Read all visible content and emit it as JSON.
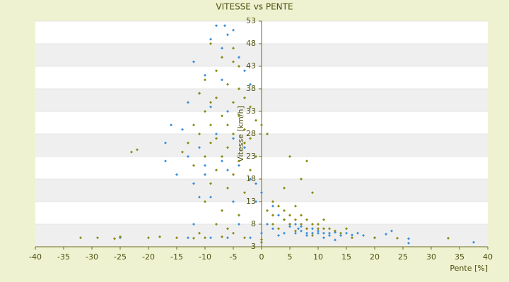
{
  "chart_data": {
    "type": "scatter",
    "title": "VITESSE vs PENTE",
    "x_label": "Pente [%]",
    "y_label": "Vitesse [km/h]",
    "xlim": [
      -40,
      40
    ],
    "xticks": [
      -40,
      -35,
      -30,
      -25,
      -20,
      -15,
      -10,
      -5,
      0,
      5,
      10,
      15,
      20,
      25,
      30,
      35,
      40
    ],
    "ylim": [
      3,
      53
    ],
    "yticks": [
      3,
      8,
      13,
      18,
      23,
      28,
      33,
      38,
      43,
      48,
      53
    ],
    "grid": true,
    "series": [
      {
        "color": "#3a8fd8",
        "x": [
          -8,
          -6.5,
          -5,
          -6,
          -9,
          -7,
          -12,
          -4,
          -3,
          -10,
          -7,
          -2,
          -11,
          -13,
          -9,
          -6,
          -16,
          -14,
          -8,
          -5,
          -17,
          -11,
          -3,
          -13,
          -7,
          -17,
          -10,
          -4,
          -15,
          -10,
          -6,
          -2,
          -12,
          -1,
          -11,
          -9,
          -5,
          -1,
          0,
          -12,
          -4,
          0,
          -25,
          -13,
          -9,
          -6,
          -2,
          2,
          3,
          4,
          5,
          5,
          6,
          6.5,
          7,
          7,
          8,
          8,
          9,
          9,
          10,
          10,
          11,
          12,
          12,
          13,
          14,
          15,
          16,
          17,
          18,
          20,
          22,
          23,
          26,
          26,
          37.5,
          4,
          6,
          3,
          2,
          8,
          11,
          1,
          13
        ],
        "y": [
          52,
          52,
          51,
          50,
          49,
          47,
          44,
          45,
          42,
          41,
          40,
          39,
          37,
          35,
          34,
          33,
          30,
          29,
          28,
          27,
          26,
          25,
          25,
          23,
          22,
          22,
          21,
          21,
          19,
          19,
          20,
          18,
          17,
          17,
          14,
          14,
          13,
          13,
          15,
          8,
          8,
          6,
          5,
          5,
          5,
          5,
          5,
          12,
          10,
          9,
          8,
          7.5,
          8,
          7,
          7.5,
          6.5,
          7,
          6,
          7,
          6,
          6.5,
          6,
          6,
          6,
          5.5,
          6.2,
          5.5,
          6,
          5.6,
          6,
          5.5,
          5,
          5.8,
          6.5,
          4.8,
          3.8,
          4,
          6,
          6,
          5.5,
          7,
          5.5,
          5,
          8,
          4.5
        ]
      },
      {
        "color": "#8a8a10",
        "x": [
          -9,
          -5,
          -7,
          -5,
          -4,
          -8,
          -10,
          -6,
          -4,
          -11,
          -8,
          -3,
          -9,
          -5,
          -2,
          -10,
          -7,
          -4,
          -1,
          -12,
          -9,
          -6,
          -3,
          0,
          -11,
          -8,
          -5,
          -2,
          1,
          -13,
          -9,
          -6,
          -3,
          -23,
          -22,
          -14,
          -10,
          -7,
          -4,
          -1,
          -12,
          -8,
          -5,
          -2,
          -9,
          -6,
          -3,
          -10,
          -7,
          -4,
          -8,
          -6,
          -11,
          -5,
          -32,
          -29,
          -26,
          -25,
          -20,
          -18,
          -15,
          -12,
          -10,
          -7,
          -3,
          0,
          0,
          16,
          20,
          24,
          33,
          1,
          2,
          3,
          4,
          4,
          5,
          5,
          6,
          6,
          7,
          7,
          8,
          8,
          9,
          10,
          10,
          11,
          12,
          13,
          14,
          15,
          5,
          8,
          7,
          9,
          4,
          2,
          3,
          6,
          9,
          11,
          2
        ],
        "y": [
          48,
          47,
          45,
          44,
          43,
          42,
          40,
          39,
          38,
          37,
          36,
          36,
          35,
          35,
          34,
          33,
          32,
          32,
          31,
          30,
          30,
          30,
          29,
          30,
          28,
          27,
          28,
          27,
          28,
          26,
          26,
          25,
          26,
          24,
          24.5,
          24,
          23,
          23,
          22,
          23,
          21,
          20,
          19,
          20,
          17,
          16,
          15,
          13,
          11,
          10,
          8,
          7,
          6,
          6,
          5,
          5,
          4.8,
          5.2,
          5,
          5.2,
          5,
          4.9,
          5,
          5.2,
          5,
          4.6,
          4,
          5,
          5,
          4.9,
          4.9,
          11,
          10,
          12,
          11,
          9,
          10,
          8,
          12,
          9,
          10,
          8,
          9,
          7,
          8,
          8,
          7,
          7,
          7,
          6.5,
          6,
          7,
          23,
          22,
          18,
          15,
          16,
          13,
          7,
          6.5,
          5.5,
          9,
          8
        ]
      }
    ]
  }
}
